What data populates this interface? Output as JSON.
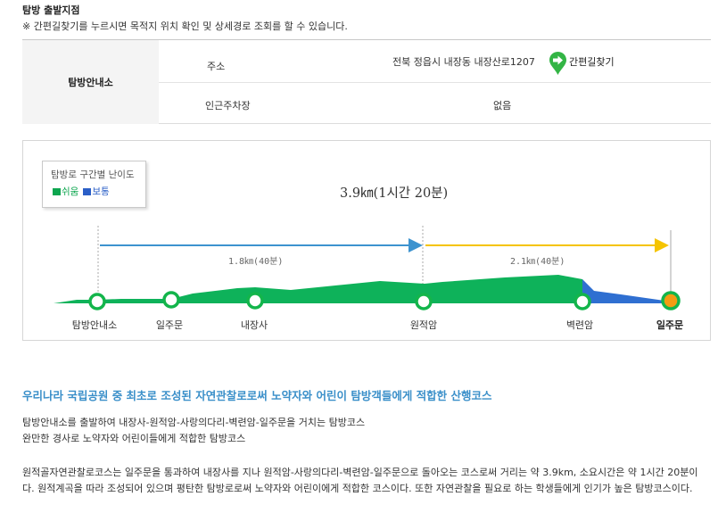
{
  "page": {
    "title": "탐방 출발지점",
    "note": "※ 간편길찾기를 누르시면 목적지 위치 확인 및 상세경로 조회를 할 수 있습니다."
  },
  "info_table": {
    "header": "탐방안내소",
    "rows": [
      {
        "label": "주소",
        "value": "전북 정읍시 내장동 내장산로1207"
      },
      {
        "label": "인근주차장",
        "value": "없음"
      }
    ],
    "nav_button": "간편길찾기",
    "nav_icon": "map-pin-arrow-icon",
    "nav_color": "#33b545"
  },
  "route": {
    "legend_title": "탐방로 구간별 난이도",
    "legend": [
      {
        "label": "쉬움",
        "color": "#0da64f"
      },
      {
        "label": "보통",
        "color": "#2b5fc7"
      }
    ],
    "total": "3.9㎞(1시간 20분)",
    "segments": [
      {
        "label": "1.8㎞(40분)",
        "color": "#3d93cf"
      },
      {
        "label": "2.1㎞(40분)",
        "color": "#f5c400"
      }
    ],
    "points": [
      {
        "label": "탐방안내소"
      },
      {
        "label": "일주문"
      },
      {
        "label": "내장사"
      },
      {
        "label": "원적암"
      },
      {
        "label": "벽련암"
      },
      {
        "label": "일주문"
      }
    ]
  },
  "description": {
    "headline": "우리나라 국립공원 중 최초로 조성된 자연관찰로로써 노약자와 어린이 탐방객들에게 적합한 산행코스",
    "paragraph1": [
      "탐방안내소를 출발하여 내장사-원적암-사랑의다리-벽련암-일주문을 거치는 탐방코스",
      "완만한 경사로 노약자와 어린이들에게 적합한 탐방코스"
    ],
    "paragraph2": [
      "원적골자연관찰로코스는 일주문을 통과하여 내장사를 지나 원적암-사랑의다리-벽련암-일주문으로 돌아오는 코스로써 거리는 약 3.9km, 소요시간은 약 1시간 20분이",
      "다. 원적계곡을 따라 조성되어 있으며 평탄한 탐방로로써 노약자와 어린이에게 적합한 코스이다. 또한 자연관찰을 필요로 하는 학생들에게 인기가 높은 탐방코스이다."
    ]
  }
}
